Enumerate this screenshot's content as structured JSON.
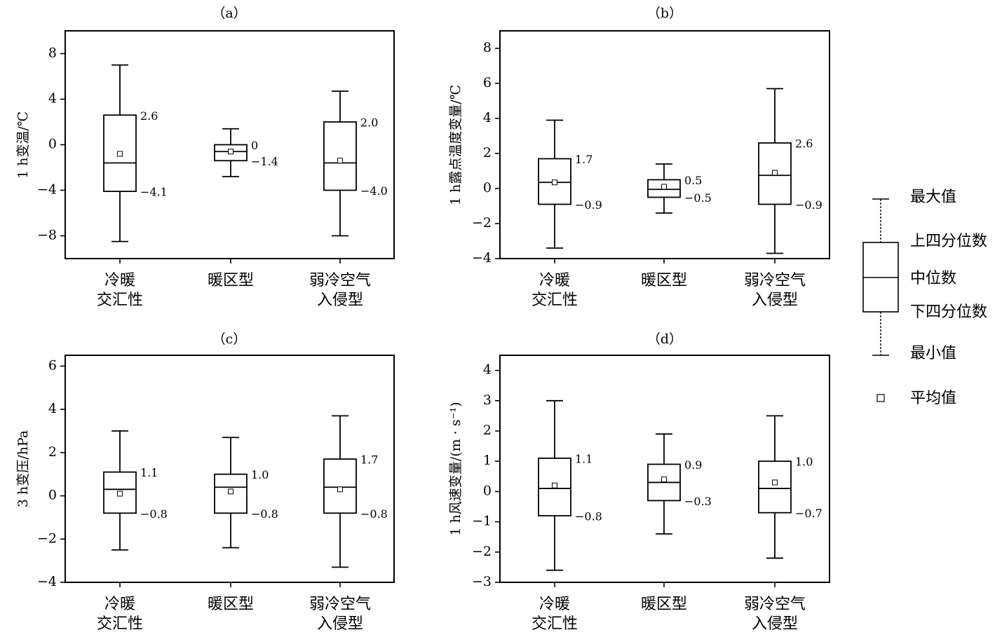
{
  "chart_data": [
    {
      "id": "a",
      "type": "box",
      "title": "（a）",
      "ylabel": "1 h变温/℃",
      "ylim": [
        -10,
        10
      ],
      "yticks": [
        -8,
        -4,
        0,
        4,
        8
      ],
      "ytick_labels": [
        "−8",
        "−4",
        "0",
        "4",
        "8"
      ],
      "categories": [
        [
          "冷暖",
          "交汇性"
        ],
        [
          "暖区型"
        ],
        [
          "弱冷空气",
          "入侵型"
        ]
      ],
      "boxes": [
        {
          "min": -8.5,
          "q1": -4.1,
          "median": -1.6,
          "q3": 2.6,
          "max": 7.0,
          "mean": -0.8,
          "q3_label": "2.6",
          "q1_label": "−4.1"
        },
        {
          "min": -2.8,
          "q1": -1.4,
          "median": -0.6,
          "q3": 0.0,
          "max": 1.4,
          "mean": -0.6,
          "q3_label": "0",
          "q1_label": "−1.4"
        },
        {
          "min": -8.0,
          "q1": -4.0,
          "median": -1.6,
          "q3": 2.0,
          "max": 4.7,
          "mean": -1.4,
          "q3_label": "2.0",
          "q1_label": "−4.0"
        }
      ]
    },
    {
      "id": "b",
      "type": "box",
      "title": "（b）",
      "ylabel": "1 h露点温度变量/℃",
      "ylim": [
        -4,
        9
      ],
      "yticks": [
        -4,
        -2,
        0,
        2,
        4,
        6,
        8
      ],
      "ytick_labels": [
        "−4",
        "−2",
        "0",
        "2",
        "4",
        "6",
        "8"
      ],
      "categories": [
        [
          "冷暖",
          "交汇性"
        ],
        [
          "暖区型"
        ],
        [
          "弱冷空气",
          "入侵型"
        ]
      ],
      "boxes": [
        {
          "min": -3.4,
          "q1": -0.9,
          "median": 0.35,
          "q3": 1.7,
          "max": 3.9,
          "mean": 0.35,
          "q3_label": "1.7",
          "q1_label": "−0.9"
        },
        {
          "min": -1.4,
          "q1": -0.5,
          "median": -0.05,
          "q3": 0.5,
          "max": 1.4,
          "mean": 0.1,
          "q3_label": "0.5",
          "q1_label": "−0.5"
        },
        {
          "min": -3.7,
          "q1": -0.9,
          "median": 0.75,
          "q3": 2.6,
          "max": 5.7,
          "mean": 0.9,
          "q3_label": "2.6",
          "q1_label": "−0.9"
        }
      ]
    },
    {
      "id": "c",
      "type": "box",
      "title": "（c）",
      "ylabel": "3 h变压/hPa",
      "ylim": [
        -4,
        6.5
      ],
      "yticks": [
        -4,
        -2,
        0,
        2,
        4,
        6
      ],
      "ytick_labels": [
        "−4",
        "−2",
        "0",
        "2",
        "4",
        "6"
      ],
      "categories": [
        [
          "冷暖",
          "交汇性"
        ],
        [
          "暖区型"
        ],
        [
          "弱冷空气",
          "入侵型"
        ]
      ],
      "boxes": [
        {
          "min": -2.5,
          "q1": -0.8,
          "median": 0.3,
          "q3": 1.1,
          "max": 3.0,
          "mean": 0.1,
          "q3_label": "1.1",
          "q1_label": "−0.8"
        },
        {
          "min": -2.4,
          "q1": -0.8,
          "median": 0.4,
          "q3": 1.0,
          "max": 2.7,
          "mean": 0.2,
          "q3_label": "1.0",
          "q1_label": "−0.8"
        },
        {
          "min": -3.3,
          "q1": -0.8,
          "median": 0.4,
          "q3": 1.7,
          "max": 3.7,
          "mean": 0.3,
          "q3_label": "1.7",
          "q1_label": "−0.8"
        }
      ]
    },
    {
      "id": "d",
      "type": "box",
      "title": "（d）",
      "ylabel": "1 h风速变量/(m · s⁻¹)",
      "ylim": [
        -3,
        4.5
      ],
      "yticks": [
        -3,
        -2,
        -1,
        0,
        1,
        2,
        3,
        4
      ],
      "ytick_labels": [
        "−3",
        "−2",
        "−1",
        "0",
        "1",
        "2",
        "3",
        "4"
      ],
      "categories": [
        [
          "冷暖",
          "交汇性"
        ],
        [
          "暖区型"
        ],
        [
          "弱冷空气",
          "入侵型"
        ]
      ],
      "boxes": [
        {
          "min": -2.6,
          "q1": -0.8,
          "median": 0.1,
          "q3": 1.1,
          "max": 3.0,
          "mean": 0.2,
          "q3_label": "1.1",
          "q1_label": "−0.8"
        },
        {
          "min": -1.4,
          "q1": -0.3,
          "median": 0.3,
          "q3": 0.9,
          "max": 1.9,
          "mean": 0.4,
          "q3_label": "0.9",
          "q1_label": "−0.3"
        },
        {
          "min": -2.2,
          "q1": -0.7,
          "median": 0.1,
          "q3": 1.0,
          "max": 2.5,
          "mean": 0.3,
          "q3_label": "1.0",
          "q1_label": "−0.7"
        }
      ]
    }
  ],
  "legend": {
    "max_label": "最大值",
    "q3_label": "上四分位数",
    "median_label": "中位数",
    "q1_label": "下四分位数",
    "min_label": "最小值",
    "mean_label": "平均值"
  }
}
